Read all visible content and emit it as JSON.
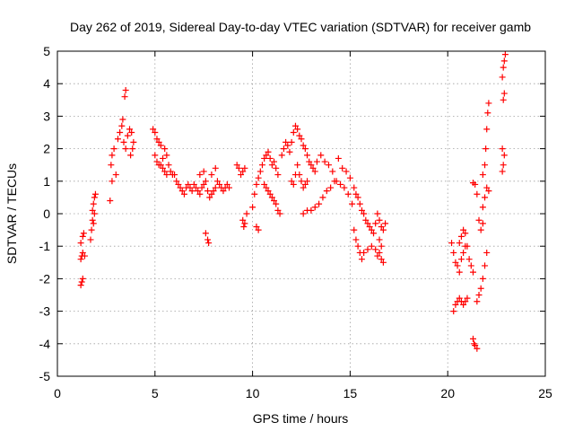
{
  "chart_data": {
    "type": "scatter",
    "title": "Day 262 of 2019, Sidereal Day-to-day VTEC variation (SDTVAR) for receiver gamb",
    "xlabel": "GPS time / hours",
    "ylabel": "SDTVAR / TECUs",
    "xlim": [
      0,
      25
    ],
    "ylim": [
      -5,
      5
    ],
    "x_ticks": [
      0,
      5,
      10,
      15,
      20,
      25
    ],
    "y_ticks": [
      -5,
      -4,
      -3,
      -2,
      -1,
      0,
      1,
      2,
      3,
      4,
      5
    ],
    "grid": true,
    "marker": "+",
    "color": "#ff0000",
    "series": [
      {
        "name": "SDTVAR",
        "points": [
          [
            1.2,
            -2.2
          ],
          [
            1.25,
            -2.1
          ],
          [
            1.3,
            -2.0
          ],
          [
            1.2,
            -1.4
          ],
          [
            1.25,
            -1.3
          ],
          [
            1.3,
            -1.2
          ],
          [
            1.2,
            -0.9
          ],
          [
            1.3,
            -0.7
          ],
          [
            1.35,
            -0.6
          ],
          [
            1.4,
            -1.3
          ],
          [
            1.7,
            -0.8
          ],
          [
            1.75,
            -0.5
          ],
          [
            1.8,
            -0.2
          ],
          [
            1.8,
            0.1
          ],
          [
            1.85,
            0.3
          ],
          [
            1.9,
            0.5
          ],
          [
            1.95,
            0.6
          ],
          [
            1.9,
            0.0
          ],
          [
            1.85,
            -0.3
          ],
          [
            2.7,
            0.4
          ],
          [
            2.8,
            1.0
          ],
          [
            2.75,
            1.5
          ],
          [
            2.8,
            1.8
          ],
          [
            2.9,
            2.0
          ],
          [
            3.0,
            1.2
          ],
          [
            3.1,
            2.3
          ],
          [
            3.2,
            2.5
          ],
          [
            3.3,
            2.7
          ],
          [
            3.35,
            2.9
          ],
          [
            3.45,
            3.6
          ],
          [
            3.5,
            3.8
          ],
          [
            3.4,
            2.2
          ],
          [
            3.5,
            2.0
          ],
          [
            3.6,
            2.4
          ],
          [
            3.7,
            2.6
          ],
          [
            3.8,
            2.5
          ],
          [
            3.9,
            2.2
          ],
          [
            3.75,
            1.8
          ],
          [
            3.85,
            2.0
          ],
          [
            4.9,
            2.6
          ],
          [
            5.0,
            2.5
          ],
          [
            5.1,
            2.3
          ],
          [
            5.2,
            2.2
          ],
          [
            5.0,
            1.8
          ],
          [
            5.1,
            1.6
          ],
          [
            5.2,
            1.5
          ],
          [
            5.3,
            1.5
          ],
          [
            5.4,
            1.4
          ],
          [
            5.5,
            1.3
          ],
          [
            5.6,
            1.2
          ],
          [
            5.7,
            1.5
          ],
          [
            5.8,
            1.3
          ],
          [
            5.9,
            1.2
          ],
          [
            5.5,
            2.0
          ],
          [
            5.6,
            1.8
          ],
          [
            5.4,
            1.7
          ],
          [
            5.3,
            2.1
          ],
          [
            6.0,
            1.2
          ],
          [
            6.1,
            1.0
          ],
          [
            6.2,
            0.9
          ],
          [
            6.3,
            0.8
          ],
          [
            6.4,
            0.7
          ],
          [
            6.5,
            0.6
          ],
          [
            6.6,
            0.8
          ],
          [
            6.7,
            0.9
          ],
          [
            6.8,
            0.8
          ],
          [
            6.9,
            0.7
          ],
          [
            7.0,
            0.9
          ],
          [
            7.1,
            0.8
          ],
          [
            7.2,
            0.7
          ],
          [
            7.3,
            0.6
          ],
          [
            7.4,
            0.8
          ],
          [
            7.5,
            0.9
          ],
          [
            7.6,
            1.0
          ],
          [
            7.7,
            0.7
          ],
          [
            7.8,
            0.5
          ],
          [
            7.9,
            0.6
          ],
          [
            8.0,
            0.7
          ],
          [
            8.1,
            0.8
          ],
          [
            8.2,
            1.0
          ],
          [
            8.3,
            0.9
          ],
          [
            8.4,
            0.8
          ],
          [
            8.5,
            0.7
          ],
          [
            8.6,
            0.8
          ],
          [
            8.7,
            0.9
          ],
          [
            8.8,
            0.8
          ],
          [
            7.6,
            -0.6
          ],
          [
            7.7,
            -0.8
          ],
          [
            7.75,
            -0.9
          ],
          [
            7.3,
            1.2
          ],
          [
            7.5,
            1.3
          ],
          [
            7.9,
            1.2
          ],
          [
            8.1,
            1.4
          ],
          [
            9.2,
            1.5
          ],
          [
            9.3,
            1.4
          ],
          [
            9.4,
            1.2
          ],
          [
            9.5,
            1.3
          ],
          [
            9.6,
            1.4
          ],
          [
            9.5,
            -0.2
          ],
          [
            9.55,
            -0.4
          ],
          [
            9.6,
            -0.3
          ],
          [
            9.7,
            0.0
          ],
          [
            10.2,
            -0.4
          ],
          [
            10.3,
            -0.5
          ],
          [
            10.0,
            0.2
          ],
          [
            10.1,
            0.6
          ],
          [
            10.2,
            0.9
          ],
          [
            10.3,
            1.1
          ],
          [
            10.4,
            1.3
          ],
          [
            10.5,
            1.5
          ],
          [
            10.6,
            1.7
          ],
          [
            10.7,
            1.8
          ],
          [
            10.8,
            1.9
          ],
          [
            10.9,
            1.7
          ],
          [
            11.0,
            1.5
          ],
          [
            11.1,
            1.6
          ],
          [
            11.2,
            1.4
          ],
          [
            11.3,
            1.2
          ],
          [
            10.6,
            0.9
          ],
          [
            10.7,
            0.8
          ],
          [
            10.8,
            0.7
          ],
          [
            10.9,
            0.6
          ],
          [
            11.0,
            0.5
          ],
          [
            11.1,
            0.4
          ],
          [
            11.2,
            0.3
          ],
          [
            11.3,
            0.1
          ],
          [
            11.4,
            0.0
          ],
          [
            11.5,
            1.8
          ],
          [
            11.6,
            2.0
          ],
          [
            11.7,
            2.2
          ],
          [
            11.8,
            2.1
          ],
          [
            11.9,
            1.9
          ],
          [
            12.0,
            2.2
          ],
          [
            12.1,
            2.5
          ],
          [
            12.2,
            2.7
          ],
          [
            12.3,
            2.6
          ],
          [
            12.4,
            2.4
          ],
          [
            12.5,
            2.3
          ],
          [
            12.6,
            2.1
          ],
          [
            12.7,
            2.0
          ],
          [
            12.8,
            1.8
          ],
          [
            12.9,
            1.6
          ],
          [
            13.0,
            1.5
          ],
          [
            13.1,
            1.4
          ],
          [
            13.2,
            1.3
          ],
          [
            12.0,
            1.0
          ],
          [
            12.1,
            0.9
          ],
          [
            12.2,
            1.2
          ],
          [
            12.3,
            1.5
          ],
          [
            12.4,
            1.2
          ],
          [
            12.5,
            1.0
          ],
          [
            12.6,
            0.8
          ],
          [
            12.7,
            0.9
          ],
          [
            12.8,
            1.0
          ],
          [
            12.6,
            0.0
          ],
          [
            12.8,
            0.1
          ],
          [
            13.0,
            0.1
          ],
          [
            13.2,
            0.2
          ],
          [
            13.4,
            0.3
          ],
          [
            13.6,
            0.5
          ],
          [
            13.8,
            0.7
          ],
          [
            14.0,
            0.8
          ],
          [
            14.2,
            1.0
          ],
          [
            13.3,
            1.6
          ],
          [
            13.5,
            1.8
          ],
          [
            13.7,
            1.6
          ],
          [
            13.9,
            1.5
          ],
          [
            14.1,
            1.3
          ],
          [
            14.3,
            1.0
          ],
          [
            14.5,
            0.9
          ],
          [
            14.7,
            0.8
          ],
          [
            14.4,
            1.7
          ],
          [
            14.6,
            1.4
          ],
          [
            14.8,
            1.3
          ],
          [
            15.0,
            1.1
          ],
          [
            14.9,
            0.6
          ],
          [
            15.1,
            0.3
          ],
          [
            15.2,
            0.8
          ],
          [
            15.3,
            0.6
          ],
          [
            15.4,
            0.5
          ],
          [
            15.5,
            0.3
          ],
          [
            15.6,
            0.1
          ],
          [
            15.7,
            0.0
          ],
          [
            15.8,
            -0.2
          ],
          [
            15.9,
            -0.3
          ],
          [
            16.0,
            -0.4
          ],
          [
            16.1,
            -0.5
          ],
          [
            16.2,
            -0.6
          ],
          [
            16.3,
            -0.3
          ],
          [
            16.4,
            0.0
          ],
          [
            16.5,
            -0.2
          ],
          [
            16.6,
            -0.4
          ],
          [
            16.7,
            -0.5
          ],
          [
            16.8,
            -0.3
          ],
          [
            15.2,
            -0.5
          ],
          [
            15.3,
            -0.8
          ],
          [
            15.4,
            -1.0
          ],
          [
            15.5,
            -1.2
          ],
          [
            15.6,
            -1.4
          ],
          [
            15.7,
            -1.2
          ],
          [
            15.9,
            -1.1
          ],
          [
            16.1,
            -1.0
          ],
          [
            16.3,
            -1.1
          ],
          [
            16.4,
            -1.3
          ],
          [
            16.5,
            -1.2
          ],
          [
            16.6,
            -1.4
          ],
          [
            16.7,
            -1.5
          ],
          [
            16.5,
            -0.8
          ],
          [
            16.6,
            -1.0
          ],
          [
            20.2,
            -0.9
          ],
          [
            20.3,
            -1.2
          ],
          [
            20.4,
            -1.5
          ],
          [
            20.5,
            -1.6
          ],
          [
            20.6,
            -1.8
          ],
          [
            20.7,
            -1.4
          ],
          [
            20.8,
            -1.2
          ],
          [
            20.9,
            -1.0
          ],
          [
            20.6,
            -0.9
          ],
          [
            20.7,
            -0.7
          ],
          [
            20.8,
            -0.5
          ],
          [
            20.9,
            -0.6
          ],
          [
            21.0,
            -1.0
          ],
          [
            21.1,
            -1.4
          ],
          [
            21.2,
            -1.6
          ],
          [
            21.3,
            -1.8
          ],
          [
            20.3,
            -3.0
          ],
          [
            20.4,
            -2.8
          ],
          [
            20.5,
            -2.7
          ],
          [
            20.6,
            -2.6
          ],
          [
            20.7,
            -2.7
          ],
          [
            20.8,
            -2.8
          ],
          [
            20.9,
            -2.7
          ],
          [
            21.0,
            -2.6
          ],
          [
            21.3,
            -3.85
          ],
          [
            21.4,
            -4.05
          ],
          [
            21.5,
            -4.15
          ],
          [
            21.35,
            -4.0
          ],
          [
            21.3,
            0.95
          ],
          [
            21.4,
            0.9
          ],
          [
            21.5,
            0.6
          ],
          [
            21.6,
            -0.2
          ],
          [
            21.7,
            -0.5
          ],
          [
            21.8,
            -0.3
          ],
          [
            21.5,
            -2.7
          ],
          [
            21.6,
            -2.5
          ],
          [
            21.7,
            -2.3
          ],
          [
            21.8,
            -2.0
          ],
          [
            21.9,
            -1.6
          ],
          [
            22.0,
            -1.2
          ],
          [
            21.8,
            0.2
          ],
          [
            21.9,
            0.5
          ],
          [
            22.0,
            0.8
          ],
          [
            22.1,
            0.7
          ],
          [
            21.9,
            1.5
          ],
          [
            21.95,
            2.0
          ],
          [
            22.0,
            2.6
          ],
          [
            22.05,
            3.1
          ],
          [
            22.1,
            3.4
          ],
          [
            21.8,
            1.2
          ],
          [
            22.8,
            1.3
          ],
          [
            22.85,
            1.5
          ],
          [
            22.9,
            1.8
          ],
          [
            22.8,
            2.0
          ],
          [
            22.85,
            3.5
          ],
          [
            22.9,
            3.7
          ],
          [
            22.8,
            4.2
          ],
          [
            22.85,
            4.5
          ],
          [
            22.9,
            4.7
          ],
          [
            22.95,
            4.9
          ]
        ]
      }
    ]
  }
}
